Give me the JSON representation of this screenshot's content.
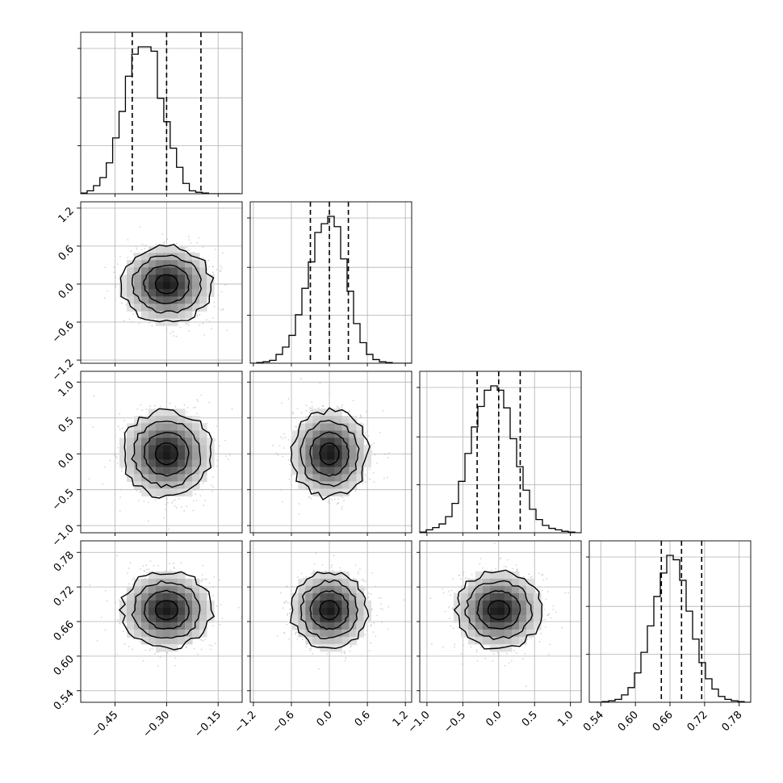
{
  "chart_data": {
    "type": "corner",
    "title": "",
    "parameters": [
      {
        "label": "",
        "range": [
          -0.55,
          -0.08
        ],
        "ticks": [
          -0.45,
          -0.3,
          -0.15
        ],
        "tick_labels": [
          "−0.45",
          "−0.30",
          "−0.15"
        ],
        "quantiles": [
          -0.4,
          -0.3,
          -0.2
        ],
        "hist_bins": [
          -0.55,
          -0.5314,
          -0.5128,
          -0.4942,
          -0.4756,
          -0.457,
          -0.4384,
          -0.4198,
          -0.4012,
          -0.3826,
          -0.364,
          -0.3454,
          -0.3268,
          -0.3082,
          -0.2896,
          -0.271,
          -0.2524,
          -0.2338,
          -0.2152,
          -0.1966,
          -0.178,
          -0.1594,
          -0.1408,
          -0.1222,
          -0.1036,
          -0.085
        ],
        "hist_counts": [
          0.005,
          0.02,
          0.055,
          0.11,
          0.21,
          0.38,
          0.56,
          0.8,
          0.95,
          1.0,
          1.0,
          0.97,
          0.65,
          0.49,
          0.31,
          0.18,
          0.07,
          0.02,
          0.01,
          0.005,
          0.0,
          0.0,
          0.0,
          0.0,
          0.0
        ]
      },
      {
        "label": "",
        "range": [
          -1.25,
          1.3
        ],
        "ticks": [
          -1.2,
          -0.6,
          0.0,
          0.6,
          1.2
        ],
        "tick_labels": [
          "−1.2",
          "−0.6",
          "0.0",
          "0.6",
          "1.2"
        ],
        "quantiles": [
          -0.3,
          0.0,
          0.3
        ],
        "hist_bins": [
          -1.25,
          -1.148,
          -1.046,
          -0.944,
          -0.842,
          -0.74,
          -0.638,
          -0.536,
          -0.434,
          -0.332,
          -0.23,
          -0.128,
          -0.026,
          0.076,
          0.178,
          0.28,
          0.382,
          0.484,
          0.586,
          0.688,
          0.79,
          0.892,
          0.994,
          1.096,
          1.198,
          1.3
        ],
        "hist_counts": [
          0.0,
          0.005,
          0.01,
          0.02,
          0.06,
          0.11,
          0.19,
          0.33,
          0.51,
          0.69,
          0.89,
          0.95,
          1.0,
          0.93,
          0.71,
          0.49,
          0.27,
          0.14,
          0.06,
          0.025,
          0.01,
          0.005,
          0.0,
          0.0,
          0.0
        ]
      },
      {
        "label": "",
        "range": [
          -1.1,
          1.15
        ],
        "ticks": [
          -1.0,
          -0.5,
          0.0,
          0.5,
          1.0
        ],
        "tick_labels": [
          "−1.0",
          "−0.5",
          "0.0",
          "0.5",
          "1.0"
        ],
        "quantiles": [
          -0.3,
          0.0,
          0.3
        ],
        "hist_bins": [
          -1.1,
          -1.01,
          -0.92,
          -0.83,
          -0.74,
          -0.65,
          -0.56,
          -0.47,
          -0.38,
          -0.29,
          -0.2,
          -0.11,
          -0.02,
          0.07,
          0.16,
          0.25,
          0.34,
          0.43,
          0.52,
          0.61,
          0.7,
          0.79,
          0.88,
          0.97,
          1.06,
          1.15
        ],
        "hist_counts": [
          0.005,
          0.02,
          0.035,
          0.06,
          0.11,
          0.2,
          0.35,
          0.54,
          0.72,
          0.86,
          0.97,
          1.0,
          0.97,
          0.85,
          0.64,
          0.45,
          0.29,
          0.16,
          0.09,
          0.05,
          0.03,
          0.02,
          0.01,
          0.005,
          0.0
        ]
      },
      {
        "label": "",
        "range": [
          0.52,
          0.8
        ],
        "ticks": [
          0.54,
          0.6,
          0.66,
          0.72,
          0.78
        ],
        "tick_labels": [
          "0.54",
          "0.60",
          "0.66",
          "0.72",
          "0.78"
        ],
        "quantiles": [
          0.645,
          0.68,
          0.715
        ],
        "hist_bins": [
          0.52,
          0.5312,
          0.5424,
          0.5536,
          0.5648,
          0.576,
          0.5872,
          0.5984,
          0.6096,
          0.6208,
          0.632,
          0.6432,
          0.6544,
          0.6656,
          0.6768,
          0.688,
          0.6992,
          0.7104,
          0.7216,
          0.7328,
          0.744,
          0.7552,
          0.7664,
          0.7776,
          0.7888,
          0.8
        ],
        "hist_counts": [
          0.0,
          0.0,
          0.005,
          0.01,
          0.02,
          0.05,
          0.1,
          0.2,
          0.34,
          0.52,
          0.72,
          0.88,
          1.0,
          0.97,
          0.83,
          0.62,
          0.43,
          0.27,
          0.16,
          0.09,
          0.04,
          0.02,
          0.01,
          0.005,
          0.0
        ]
      }
    ],
    "density_panels": [
      {
        "x_param": 0,
        "y_param": 1,
        "mean": [
          -0.3,
          0.0
        ],
        "sigma": [
          0.065,
          0.3
        ]
      },
      {
        "x_param": 0,
        "y_param": 2,
        "mean": [
          -0.3,
          0.0
        ],
        "sigma": [
          0.065,
          0.3
        ]
      },
      {
        "x_param": 1,
        "y_param": 2,
        "mean": [
          0.0,
          0.0
        ],
        "sigma": [
          0.3,
          0.3
        ]
      },
      {
        "x_param": 0,
        "y_param": 3,
        "mean": [
          -0.3,
          0.68
        ],
        "sigma": [
          0.065,
          0.033
        ]
      },
      {
        "x_param": 1,
        "y_param": 3,
        "mean": [
          0.0,
          0.68
        ],
        "sigma": [
          0.3,
          0.033
        ]
      },
      {
        "x_param": 2,
        "y_param": 3,
        "mean": [
          0.0,
          0.68
        ],
        "sigma": [
          0.3,
          0.033
        ]
      }
    ],
    "contour_levels_sigma": [
      0.5,
      1.0,
      1.5,
      2.0
    ],
    "grid": true,
    "colors": {
      "hist": "#000000",
      "contour": "#000000",
      "scatter": "#b0b0b0",
      "grid": "#b0b0b0"
    }
  }
}
